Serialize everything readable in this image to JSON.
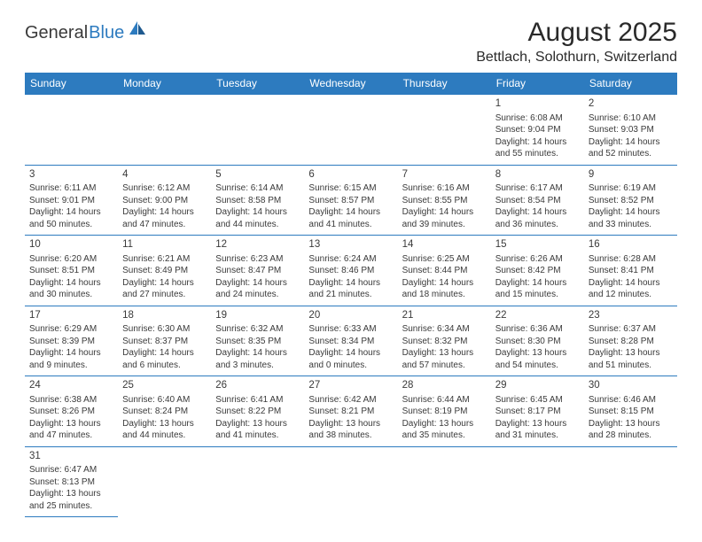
{
  "logo": {
    "general": "General",
    "blue": "Blue"
  },
  "title": "August 2025",
  "subtitle": "Bettlach, Solothurn, Switzerland",
  "header_bg": "#2d7bbf",
  "header_fg": "#ffffff",
  "dayNames": [
    "Sunday",
    "Monday",
    "Tuesday",
    "Wednesday",
    "Thursday",
    "Friday",
    "Saturday"
  ],
  "weeks": [
    [
      null,
      null,
      null,
      null,
      null,
      {
        "n": "1",
        "sr": "Sunrise: 6:08 AM",
        "ss": "Sunset: 9:04 PM",
        "d1": "Daylight: 14 hours",
        "d2": "and 55 minutes."
      },
      {
        "n": "2",
        "sr": "Sunrise: 6:10 AM",
        "ss": "Sunset: 9:03 PM",
        "d1": "Daylight: 14 hours",
        "d2": "and 52 minutes."
      }
    ],
    [
      {
        "n": "3",
        "sr": "Sunrise: 6:11 AM",
        "ss": "Sunset: 9:01 PM",
        "d1": "Daylight: 14 hours",
        "d2": "and 50 minutes."
      },
      {
        "n": "4",
        "sr": "Sunrise: 6:12 AM",
        "ss": "Sunset: 9:00 PM",
        "d1": "Daylight: 14 hours",
        "d2": "and 47 minutes."
      },
      {
        "n": "5",
        "sr": "Sunrise: 6:14 AM",
        "ss": "Sunset: 8:58 PM",
        "d1": "Daylight: 14 hours",
        "d2": "and 44 minutes."
      },
      {
        "n": "6",
        "sr": "Sunrise: 6:15 AM",
        "ss": "Sunset: 8:57 PM",
        "d1": "Daylight: 14 hours",
        "d2": "and 41 minutes."
      },
      {
        "n": "7",
        "sr": "Sunrise: 6:16 AM",
        "ss": "Sunset: 8:55 PM",
        "d1": "Daylight: 14 hours",
        "d2": "and 39 minutes."
      },
      {
        "n": "8",
        "sr": "Sunrise: 6:17 AM",
        "ss": "Sunset: 8:54 PM",
        "d1": "Daylight: 14 hours",
        "d2": "and 36 minutes."
      },
      {
        "n": "9",
        "sr": "Sunrise: 6:19 AM",
        "ss": "Sunset: 8:52 PM",
        "d1": "Daylight: 14 hours",
        "d2": "and 33 minutes."
      }
    ],
    [
      {
        "n": "10",
        "sr": "Sunrise: 6:20 AM",
        "ss": "Sunset: 8:51 PM",
        "d1": "Daylight: 14 hours",
        "d2": "and 30 minutes."
      },
      {
        "n": "11",
        "sr": "Sunrise: 6:21 AM",
        "ss": "Sunset: 8:49 PM",
        "d1": "Daylight: 14 hours",
        "d2": "and 27 minutes."
      },
      {
        "n": "12",
        "sr": "Sunrise: 6:23 AM",
        "ss": "Sunset: 8:47 PM",
        "d1": "Daylight: 14 hours",
        "d2": "and 24 minutes."
      },
      {
        "n": "13",
        "sr": "Sunrise: 6:24 AM",
        "ss": "Sunset: 8:46 PM",
        "d1": "Daylight: 14 hours",
        "d2": "and 21 minutes."
      },
      {
        "n": "14",
        "sr": "Sunrise: 6:25 AM",
        "ss": "Sunset: 8:44 PM",
        "d1": "Daylight: 14 hours",
        "d2": "and 18 minutes."
      },
      {
        "n": "15",
        "sr": "Sunrise: 6:26 AM",
        "ss": "Sunset: 8:42 PM",
        "d1": "Daylight: 14 hours",
        "d2": "and 15 minutes."
      },
      {
        "n": "16",
        "sr": "Sunrise: 6:28 AM",
        "ss": "Sunset: 8:41 PM",
        "d1": "Daylight: 14 hours",
        "d2": "and 12 minutes."
      }
    ],
    [
      {
        "n": "17",
        "sr": "Sunrise: 6:29 AM",
        "ss": "Sunset: 8:39 PM",
        "d1": "Daylight: 14 hours",
        "d2": "and 9 minutes."
      },
      {
        "n": "18",
        "sr": "Sunrise: 6:30 AM",
        "ss": "Sunset: 8:37 PM",
        "d1": "Daylight: 14 hours",
        "d2": "and 6 minutes."
      },
      {
        "n": "19",
        "sr": "Sunrise: 6:32 AM",
        "ss": "Sunset: 8:35 PM",
        "d1": "Daylight: 14 hours",
        "d2": "and 3 minutes."
      },
      {
        "n": "20",
        "sr": "Sunrise: 6:33 AM",
        "ss": "Sunset: 8:34 PM",
        "d1": "Daylight: 14 hours",
        "d2": "and 0 minutes."
      },
      {
        "n": "21",
        "sr": "Sunrise: 6:34 AM",
        "ss": "Sunset: 8:32 PM",
        "d1": "Daylight: 13 hours",
        "d2": "and 57 minutes."
      },
      {
        "n": "22",
        "sr": "Sunrise: 6:36 AM",
        "ss": "Sunset: 8:30 PM",
        "d1": "Daylight: 13 hours",
        "d2": "and 54 minutes."
      },
      {
        "n": "23",
        "sr": "Sunrise: 6:37 AM",
        "ss": "Sunset: 8:28 PM",
        "d1": "Daylight: 13 hours",
        "d2": "and 51 minutes."
      }
    ],
    [
      {
        "n": "24",
        "sr": "Sunrise: 6:38 AM",
        "ss": "Sunset: 8:26 PM",
        "d1": "Daylight: 13 hours",
        "d2": "and 47 minutes."
      },
      {
        "n": "25",
        "sr": "Sunrise: 6:40 AM",
        "ss": "Sunset: 8:24 PM",
        "d1": "Daylight: 13 hours",
        "d2": "and 44 minutes."
      },
      {
        "n": "26",
        "sr": "Sunrise: 6:41 AM",
        "ss": "Sunset: 8:22 PM",
        "d1": "Daylight: 13 hours",
        "d2": "and 41 minutes."
      },
      {
        "n": "27",
        "sr": "Sunrise: 6:42 AM",
        "ss": "Sunset: 8:21 PM",
        "d1": "Daylight: 13 hours",
        "d2": "and 38 minutes."
      },
      {
        "n": "28",
        "sr": "Sunrise: 6:44 AM",
        "ss": "Sunset: 8:19 PM",
        "d1": "Daylight: 13 hours",
        "d2": "and 35 minutes."
      },
      {
        "n": "29",
        "sr": "Sunrise: 6:45 AM",
        "ss": "Sunset: 8:17 PM",
        "d1": "Daylight: 13 hours",
        "d2": "and 31 minutes."
      },
      {
        "n": "30",
        "sr": "Sunrise: 6:46 AM",
        "ss": "Sunset: 8:15 PM",
        "d1": "Daylight: 13 hours",
        "d2": "and 28 minutes."
      }
    ],
    [
      {
        "n": "31",
        "sr": "Sunrise: 6:47 AM",
        "ss": "Sunset: 8:13 PM",
        "d1": "Daylight: 13 hours",
        "d2": "and 25 minutes."
      },
      null,
      null,
      null,
      null,
      null,
      null
    ]
  ]
}
